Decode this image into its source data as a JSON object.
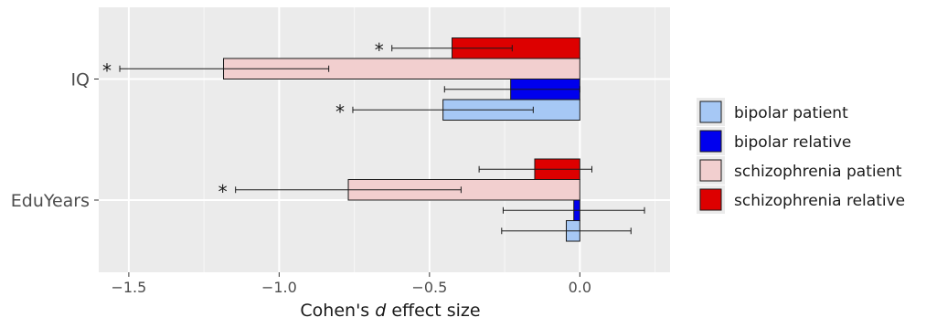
{
  "chart_data": {
    "type": "bar",
    "orientation": "horizontal",
    "categories": [
      "IQ",
      "EduYears"
    ],
    "series": [
      {
        "name": "bipolar patient",
        "values": [
          -0.455,
          -0.045
        ],
        "ci_low": [
          -0.755,
          -0.26
        ],
        "ci_high": [
          -0.155,
          0.17
        ],
        "significant": [
          true,
          false
        ],
        "color": "#a6c8f5"
      },
      {
        "name": "bipolar relative",
        "values": [
          -0.23,
          -0.02
        ],
        "ci_low": [
          -0.45,
          -0.255
        ],
        "ci_high": [
          0.0,
          0.215
        ],
        "significant": [
          false,
          false
        ],
        "color": "#0000ee"
      },
      {
        "name": "schizophrenia patient",
        "values": [
          -1.185,
          -0.77
        ],
        "ci_low": [
          -1.53,
          -1.145
        ],
        "ci_high": [
          -0.835,
          -0.395
        ],
        "significant": [
          true,
          true
        ],
        "color": "#f2cfcf"
      },
      {
        "name": "schizophrenia relative",
        "values": [
          -0.425,
          -0.15
        ],
        "ci_low": [
          -0.625,
          -0.335
        ],
        "ci_high": [
          -0.225,
          0.04
        ],
        "significant": [
          true,
          false
        ],
        "color": "#dd0000"
      }
    ],
    "significance_marker": "*",
    "xlabel_prefix": "Cohen's ",
    "xlabel_italic": "d",
    "xlabel_suffix": " effect size",
    "ylabel": "",
    "xlim": [
      -1.6,
      0.3
    ],
    "xticks": [
      -1.5,
      -1.0,
      -0.5,
      0.0
    ],
    "xtick_labels": [
      "−1.5",
      "−1.0",
      "−0.5",
      "0.0"
    ],
    "grid": true,
    "legend_position": "right"
  }
}
